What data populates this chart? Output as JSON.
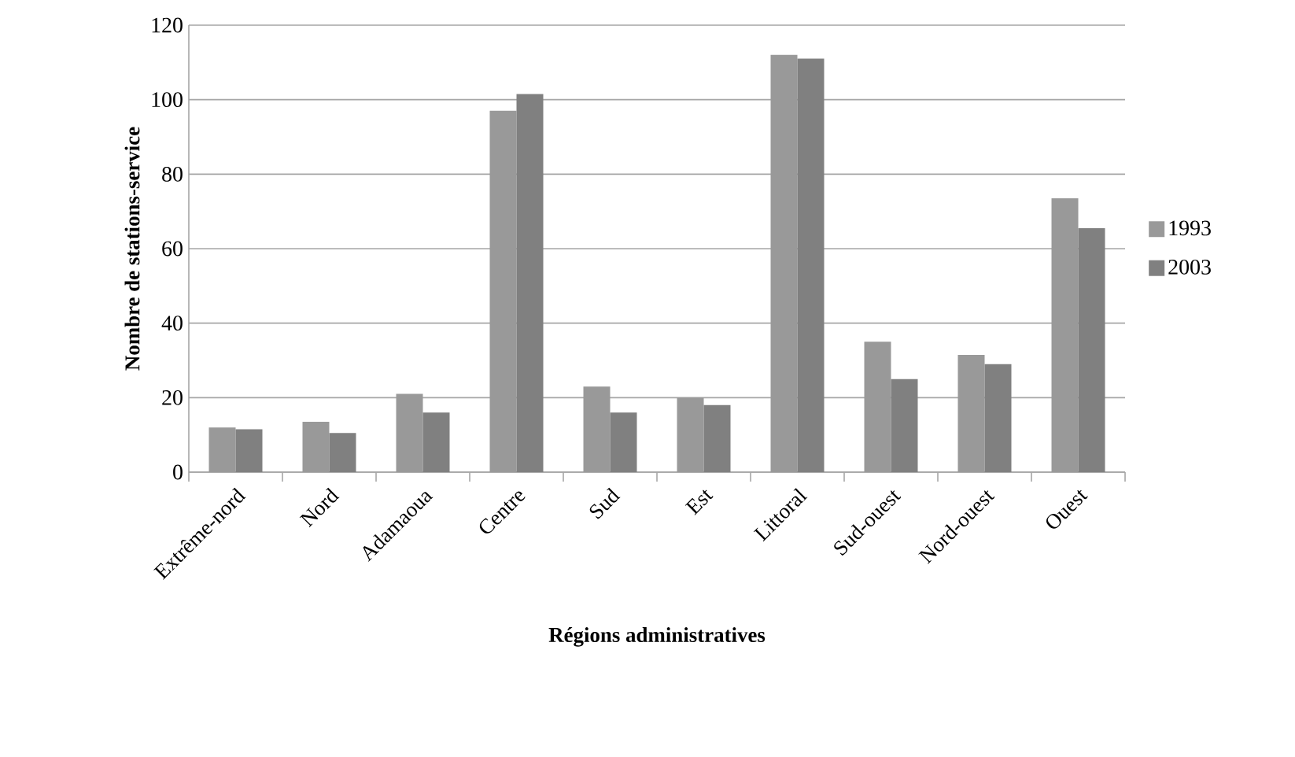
{
  "chart_data": {
    "type": "bar",
    "xlabel": "Régions administratives",
    "ylabel": "Nombre de stations-service",
    "categories": [
      "Extrême-nord",
      "Nord",
      "Adamaoua",
      "Centre",
      "Sud",
      "Est",
      "Littoral",
      "Sud-ouest",
      "Nord-ouest",
      "Ouest"
    ],
    "series": [
      {
        "name": "1993",
        "color": "#999999",
        "values": [
          12,
          13.5,
          21,
          97,
          23,
          20,
          112,
          35,
          31.5,
          73.5
        ]
      },
      {
        "name": "2003",
        "color": "#808080",
        "values": [
          11.5,
          10.5,
          16,
          101.5,
          16,
          18,
          111,
          25,
          29,
          65.5
        ]
      }
    ],
    "ylim": [
      0,
      120
    ],
    "yticks": [
      0,
      20,
      40,
      60,
      80,
      100,
      120
    ],
    "grid": "y",
    "legend": "right"
  }
}
